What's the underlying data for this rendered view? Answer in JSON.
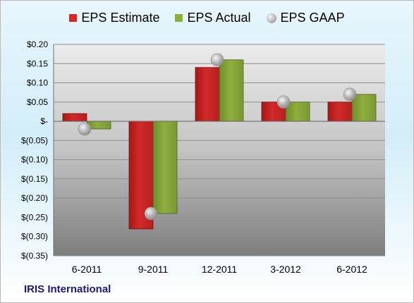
{
  "company": "IRIS International",
  "colors": {
    "estimate": "#d22a2a",
    "actual": "#8fae3e",
    "gaap": "#b3b3b3"
  },
  "chart_data": {
    "type": "bar",
    "categories": [
      "6-2011",
      "9-2011",
      "12-2011",
      "3-2012",
      "6-2012"
    ],
    "series": [
      {
        "name": "EPS Estimate",
        "kind": "bar",
        "values": [
          0.02,
          -0.28,
          0.14,
          0.05,
          0.05
        ]
      },
      {
        "name": "EPS Actual",
        "kind": "bar",
        "values": [
          -0.02,
          -0.24,
          0.16,
          0.05,
          0.07
        ]
      },
      {
        "name": "EPS GAAP",
        "kind": "marker",
        "values": [
          -0.02,
          -0.24,
          0.16,
          0.05,
          0.07
        ]
      }
    ],
    "ylim": [
      -0.35,
      0.2
    ],
    "yticks": [
      0.2,
      0.15,
      0.1,
      0.05,
      0,
      -0.05,
      -0.1,
      -0.15,
      -0.2,
      -0.25,
      -0.3,
      -0.35
    ],
    "ytick_labels": [
      "$0.20",
      "$0.15",
      "$0.10",
      "$0.05",
      "$-",
      "$(0.05)",
      "$(0.10)",
      "$(0.15)",
      "$(0.20)",
      "$(0.25)",
      "$(0.30)",
      "$(0.35)"
    ],
    "grid": true,
    "legend_position": "top"
  }
}
